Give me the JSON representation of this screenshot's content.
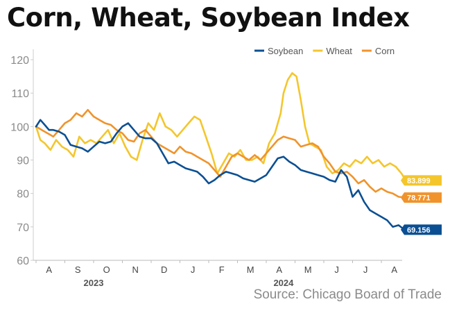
{
  "title": "Corn, Wheat, Soybean Index",
  "source": "Source: Chicago Board of Trade",
  "chart_data": {
    "type": "line",
    "title": "Corn, Wheat, Soybean Index",
    "xlabel": "",
    "ylabel": "",
    "ylim": [
      60,
      120
    ],
    "yticks": [
      60,
      70,
      80,
      90,
      100,
      110,
      120
    ],
    "xlim": [
      0,
      12.85
    ],
    "months": [
      "A",
      "S",
      "O",
      "N",
      "D",
      "J",
      "F",
      "M",
      "A",
      "M",
      "J",
      "J",
      "A"
    ],
    "years": [
      {
        "label": "2023",
        "at": 2
      },
      {
        "label": "2024",
        "at": 8.6
      }
    ],
    "grid": false,
    "legend_position": "top-right",
    "series": [
      {
        "name": "Soybean",
        "color": "#0b4f93",
        "end_label": "69.156",
        "x": [
          0,
          0.15,
          0.3,
          0.45,
          0.6,
          0.8,
          1.0,
          1.2,
          1.4,
          1.6,
          1.8,
          2.0,
          2.2,
          2.4,
          2.6,
          2.8,
          3.0,
          3.2,
          3.4,
          3.6,
          3.8,
          4.0,
          4.2,
          4.4,
          4.6,
          4.8,
          5.0,
          5.2,
          5.4,
          5.6,
          5.8,
          6.0,
          6.2,
          6.4,
          6.6,
          6.8,
          7.0,
          7.2,
          7.4,
          7.6,
          7.8,
          8.0,
          8.2,
          8.4,
          8.6,
          8.8,
          9.0,
          9.2,
          9.4,
          9.6,
          9.8,
          10.0,
          10.2,
          10.4,
          10.6,
          10.8,
          11.0,
          11.2,
          11.4,
          11.6,
          11.8,
          12.0,
          12.2,
          12.4,
          12.6,
          12.8
        ],
        "values": [
          100,
          102,
          100.5,
          99,
          99,
          98.5,
          97.5,
          94.5,
          94,
          93.5,
          92.5,
          94,
          95.5,
          95,
          95.5,
          98,
          100,
          101,
          99,
          97,
          96.5,
          96.5,
          95,
          92,
          89,
          89.5,
          88.5,
          87.5,
          87,
          86.5,
          85,
          83,
          84,
          85.5,
          86.5,
          86,
          85.5,
          84.5,
          84,
          83.5,
          84.5,
          85.5,
          88,
          90.5,
          91,
          89.5,
          88.5,
          87,
          86.5,
          86,
          85.5,
          85,
          84,
          83.5,
          87,
          85,
          79,
          81,
          77.5,
          75,
          74,
          73,
          72,
          70,
          70.5,
          69.156
        ]
      },
      {
        "name": "Wheat",
        "color": "#f4c62c",
        "end_label": "83.899",
        "x": [
          0,
          0.15,
          0.3,
          0.5,
          0.7,
          0.9,
          1.1,
          1.3,
          1.5,
          1.7,
          1.9,
          2.1,
          2.3,
          2.5,
          2.7,
          2.9,
          3.1,
          3.3,
          3.5,
          3.7,
          3.9,
          4.1,
          4.3,
          4.5,
          4.7,
          4.9,
          5.1,
          5.3,
          5.5,
          5.7,
          5.9,
          6.1,
          6.3,
          6.5,
          6.7,
          6.9,
          7.1,
          7.3,
          7.5,
          7.7,
          7.9,
          8.1,
          8.3,
          8.5,
          8.6,
          8.75,
          8.9,
          9.05,
          9.2,
          9.35,
          9.5,
          9.7,
          9.9,
          10.1,
          10.3,
          10.5,
          10.7,
          10.9,
          11.1,
          11.3,
          11.5,
          11.7,
          11.9,
          12.1,
          12.3,
          12.5,
          12.7,
          12.85
        ],
        "values": [
          100,
          96,
          95,
          93,
          96,
          94,
          93,
          91,
          97,
          95,
          96,
          95,
          97,
          99,
          95,
          98,
          94,
          91,
          90,
          96,
          101,
          99,
          104,
          100,
          99,
          97,
          99,
          101,
          103,
          102,
          97,
          92,
          86,
          89,
          92,
          91,
          93,
          90,
          90,
          91,
          89,
          95,
          98,
          104,
          110,
          114,
          116,
          115,
          108,
          100,
          95,
          94,
          93,
          88,
          86,
          87,
          89,
          88,
          90,
          89,
          91,
          89,
          90,
          88,
          89,
          88,
          86,
          83.899
        ]
      },
      {
        "name": "Corn",
        "color": "#f0932b",
        "end_label": "78.771",
        "x": [
          0,
          0.2,
          0.4,
          0.6,
          0.8,
          1.0,
          1.2,
          1.4,
          1.6,
          1.8,
          2.0,
          2.2,
          2.4,
          2.6,
          2.8,
          3.0,
          3.2,
          3.4,
          3.6,
          3.8,
          4.0,
          4.2,
          4.4,
          4.6,
          4.8,
          5.0,
          5.2,
          5.4,
          5.6,
          5.8,
          6.0,
          6.2,
          6.4,
          6.6,
          6.8,
          7.0,
          7.2,
          7.4,
          7.6,
          7.8,
          8.0,
          8.2,
          8.4,
          8.6,
          8.8,
          9.0,
          9.2,
          9.4,
          9.6,
          9.8,
          10.0,
          10.2,
          10.4,
          10.6,
          10.8,
          11.0,
          11.2,
          11.4,
          11.6,
          11.8,
          12.0,
          12.2,
          12.4,
          12.6,
          12.8
        ],
        "values": [
          100,
          99,
          98,
          97,
          99,
          101,
          102,
          104,
          103,
          105,
          103,
          102,
          101,
          100.5,
          99,
          98,
          96,
          95.5,
          98,
          99,
          97,
          95,
          94,
          93,
          92,
          94,
          92.5,
          92,
          91,
          90,
          89,
          87,
          85,
          88,
          91,
          92,
          91,
          90,
          91.5,
          90,
          92,
          94,
          96,
          97,
          96.5,
          96,
          94,
          94.5,
          95,
          94,
          91,
          89,
          86.5,
          86,
          86.5,
          85,
          83,
          84,
          82,
          80.5,
          81.5,
          80.5,
          80,
          79,
          78.771
        ]
      }
    ]
  }
}
